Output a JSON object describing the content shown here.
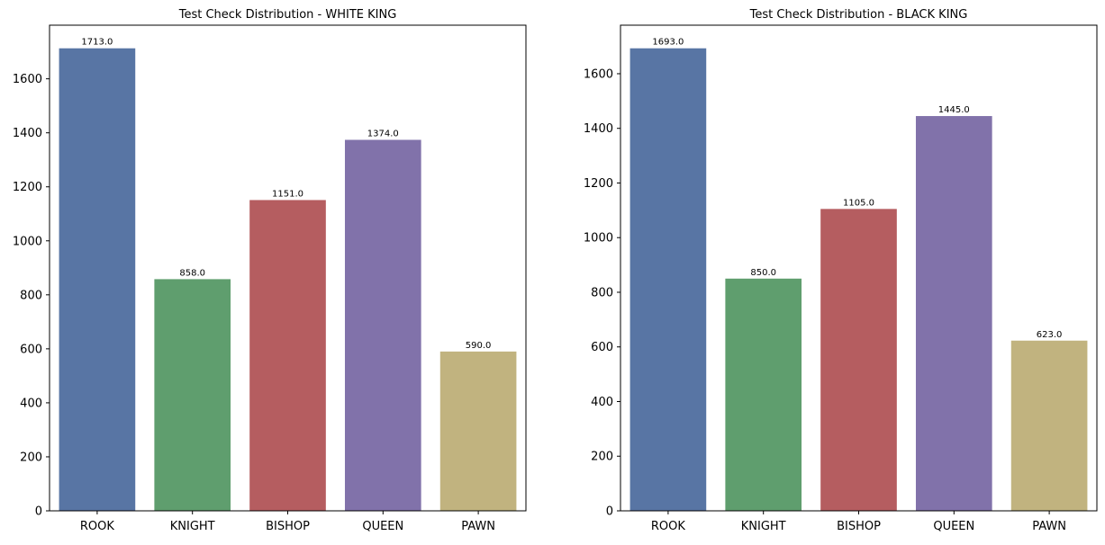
{
  "colors": {
    "rook": "#5875a4",
    "knight": "#5f9e6e",
    "bishop": "#b55d60",
    "queen": "#8172aa",
    "pawn": "#c1b37f",
    "axis": "#000000",
    "background": "#ffffff"
  },
  "chart_data": [
    {
      "type": "bar",
      "title": "Test Check Distribution - WHITE KING",
      "xlabel": "",
      "ylabel": "",
      "categories": [
        "ROOK",
        "KNIGHT",
        "BISHOP",
        "QUEEN",
        "PAWN"
      ],
      "values": [
        1713,
        858,
        1151,
        1374,
        590
      ],
      "value_labels": [
        "1713.0",
        "858.0",
        "1151.0",
        "1374.0",
        "590.0"
      ],
      "bar_color_keys": [
        "rook",
        "knight",
        "bishop",
        "queen",
        "pawn"
      ],
      "yticks": [
        0,
        200,
        400,
        600,
        800,
        1000,
        1200,
        1400,
        1600
      ],
      "ylim": [
        0,
        1798.65
      ],
      "grid": false,
      "legend": "none"
    },
    {
      "type": "bar",
      "title": "Test Check Distribution - BLACK KING",
      "xlabel": "",
      "ylabel": "",
      "categories": [
        "ROOK",
        "KNIGHT",
        "BISHOP",
        "QUEEN",
        "PAWN"
      ],
      "values": [
        1693,
        850,
        1105,
        1445,
        623
      ],
      "value_labels": [
        "1693.0",
        "850.0",
        "1105.0",
        "1445.0",
        "623.0"
      ],
      "bar_color_keys": [
        "rook",
        "knight",
        "bishop",
        "queen",
        "pawn"
      ],
      "yticks": [
        0,
        200,
        400,
        600,
        800,
        1000,
        1200,
        1400,
        1600
      ],
      "ylim": [
        0,
        1777.65
      ],
      "grid": false,
      "legend": "none"
    }
  ]
}
